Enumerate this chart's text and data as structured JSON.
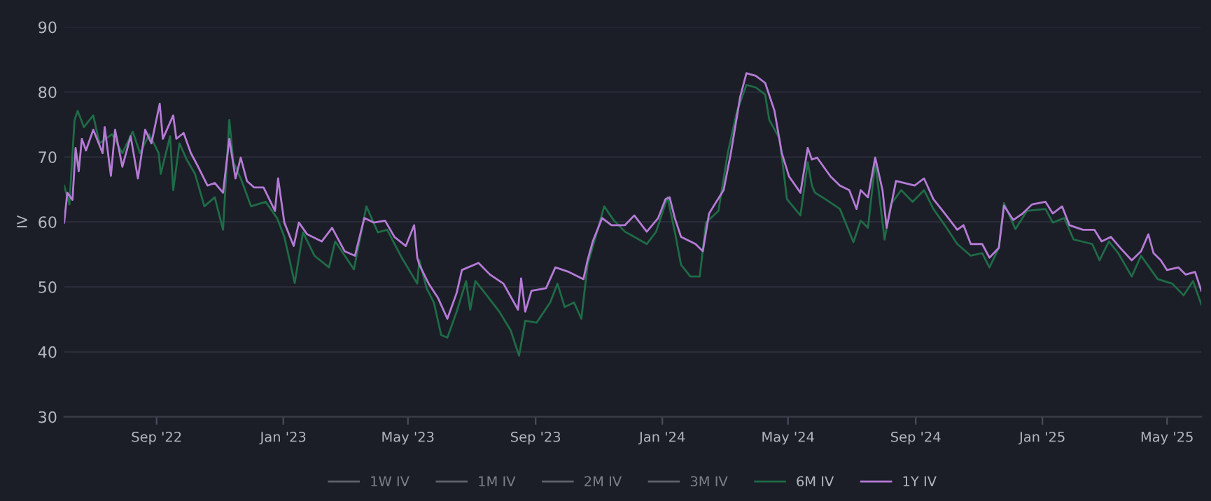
{
  "chart_data": {
    "type": "line",
    "ylabel": "IV",
    "xlim": [
      "2022-06-04",
      "2025-06-03"
    ],
    "xticks": [
      {
        "value": "2022-09-01",
        "label": "Sep '22"
      },
      {
        "value": "2023-01-01",
        "label": "Jan '23"
      },
      {
        "value": "2023-05-01",
        "label": "May '23"
      },
      {
        "value": "2023-09-01",
        "label": "Sep '23"
      },
      {
        "value": "2024-01-01",
        "label": "Jan '24"
      },
      {
        "value": "2024-05-01",
        "label": "May '24"
      },
      {
        "value": "2024-09-01",
        "label": "Sep '24"
      },
      {
        "value": "2025-01-01",
        "label": "Jan '25"
      },
      {
        "value": "2025-05-01",
        "label": "May '25"
      }
    ],
    "ylim": [
      30,
      90
    ],
    "yticks": [
      30,
      40,
      50,
      60,
      70,
      80,
      90
    ],
    "grid": "y",
    "legend": "bottom",
    "line_style": "solid",
    "marker": "none",
    "series": [
      {
        "name": "1W IV",
        "color": "#5f626b"
      },
      {
        "name": "1M IV",
        "color": "#5f626b"
      },
      {
        "name": "2M IV",
        "color": "#5f626b"
      },
      {
        "name": "3M IV",
        "color": "#5f626b"
      },
      {
        "name": "6M IV",
        "color": "#1f6b46",
        "x": [
          "2022-06-04",
          "2022-06-09",
          "2022-06-14",
          "2022-06-17",
          "2022-06-23",
          "2022-07-02",
          "2022-07-08",
          "2022-07-20",
          "2022-07-30",
          "2022-08-09",
          "2022-08-16",
          "2022-08-25",
          "2022-09-03",
          "2022-09-05",
          "2022-09-14",
          "2022-09-17",
          "2022-09-23",
          "2022-09-30",
          "2022-10-08",
          "2022-10-17",
          "2022-10-27",
          "2022-11-04",
          "2022-11-10",
          "2022-11-14",
          "2022-11-22",
          "2022-12-01",
          "2022-12-15",
          "2022-12-26",
          "2023-01-02",
          "2023-01-12",
          "2023-01-20",
          "2023-01-31",
          "2023-02-14",
          "2023-02-20",
          "2023-03-10",
          "2023-03-22",
          "2023-04-02",
          "2023-04-11",
          "2023-04-24",
          "2023-05-10",
          "2023-05-12",
          "2023-05-19",
          "2023-05-26",
          "2023-06-02",
          "2023-06-08",
          "2023-06-17",
          "2023-06-26",
          "2023-06-30",
          "2023-07-05",
          "2023-07-14",
          "2023-07-28",
          "2023-08-08",
          "2023-08-16",
          "2023-08-22",
          "2023-09-02",
          "2023-09-15",
          "2023-09-22",
          "2023-09-29",
          "2023-10-08",
          "2023-10-15",
          "2023-10-21",
          "2023-10-30",
          "2023-11-06",
          "2023-11-15",
          "2023-11-26",
          "2023-12-05",
          "2023-12-17",
          "2023-12-26",
          "2024-01-06",
          "2024-01-13",
          "2024-01-19",
          "2024-01-28",
          "2024-02-06",
          "2024-02-12",
          "2024-02-24",
          "2024-03-04",
          "2024-03-13",
          "2024-03-22",
          "2024-03-31",
          "2024-04-09",
          "2024-04-13",
          "2024-04-23",
          "2024-04-30",
          "2024-05-13",
          "2024-05-20",
          "2024-05-24",
          "2024-05-27",
          "2024-06-07",
          "2024-06-20",
          "2024-07-03",
          "2024-07-10",
          "2024-07-17",
          "2024-07-24",
          "2024-08-02",
          "2024-08-08",
          "2024-08-18",
          "2024-08-29",
          "2024-09-09",
          "2024-09-18",
          "2024-09-29",
          "2024-10-11",
          "2024-10-24",
          "2024-11-04",
          "2024-11-11",
          "2024-11-20",
          "2024-11-25",
          "2024-12-06",
          "2024-12-17",
          "2025-01-04",
          "2025-01-11",
          "2025-01-22",
          "2025-01-31",
          "2025-02-18",
          "2025-02-25",
          "2025-03-06",
          "2025-03-15",
          "2025-03-28",
          "2025-04-06",
          "2025-04-22",
          "2025-05-06",
          "2025-05-17",
          "2025-05-26",
          "2025-06-03"
        ],
        "values": [
          65.6,
          62.7,
          75.7,
          77.1,
          74.6,
          76.4,
          72.1,
          73.5,
          70.6,
          73.9,
          70.6,
          73.5,
          70.6,
          67.4,
          73.2,
          64.9,
          72.1,
          69.6,
          67.4,
          62.4,
          63.8,
          58.8,
          75.7,
          69.2,
          66.3,
          62.4,
          63.1,
          60.6,
          57.7,
          50.6,
          58.4,
          54.8,
          53.0,
          57.0,
          52.7,
          62.4,
          58.4,
          58.8,
          54.8,
          50.5,
          54.1,
          49.8,
          47.6,
          42.6,
          42.2,
          46.2,
          50.9,
          46.5,
          50.9,
          49.1,
          46.2,
          43.3,
          39.4,
          44.8,
          44.5,
          47.6,
          50.5,
          46.9,
          47.6,
          45.1,
          53.4,
          58.4,
          62.4,
          60.3,
          58.5,
          57.7,
          56.6,
          58.5,
          63.8,
          58.5,
          53.4,
          51.6,
          51.6,
          59.9,
          61.7,
          70.6,
          77.1,
          81.1,
          80.7,
          79.6,
          75.7,
          72.8,
          63.5,
          61.0,
          69.2,
          65.6,
          64.5,
          63.4,
          62.0,
          56.9,
          60.2,
          59.1,
          69.2,
          57.3,
          62.7,
          64.9,
          63.1,
          64.9,
          62.0,
          59.5,
          56.6,
          54.8,
          55.2,
          53.0,
          56.0,
          62.9,
          58.9,
          61.7,
          62.0,
          59.9,
          60.6,
          57.3,
          56.6,
          54.1,
          57.0,
          55.2,
          51.6,
          54.8,
          51.2,
          50.5,
          48.7,
          50.9,
          47.3
        ]
      },
      {
        "name": "1Y IV",
        "color": "#b57bd6",
        "x": [
          "2022-06-04",
          "2022-06-07",
          "2022-06-12",
          "2022-06-15",
          "2022-06-18",
          "2022-06-21",
          "2022-06-25",
          "2022-07-02",
          "2022-07-11",
          "2022-07-13",
          "2022-07-19",
          "2022-07-23",
          "2022-07-30",
          "2022-08-07",
          "2022-08-14",
          "2022-08-21",
          "2022-08-27",
          "2022-09-04",
          "2022-09-07",
          "2022-09-17",
          "2022-09-20",
          "2022-09-27",
          "2022-10-04",
          "2022-10-11",
          "2022-10-20",
          "2022-10-27",
          "2022-11-04",
          "2022-11-10",
          "2022-11-16",
          "2022-11-21",
          "2022-11-27",
          "2022-12-04",
          "2022-12-13",
          "2022-12-24",
          "2022-12-27",
          "2023-01-02",
          "2023-01-11",
          "2023-01-16",
          "2023-01-24",
          "2023-02-07",
          "2023-02-17",
          "2023-03-01",
          "2023-03-11",
          "2023-03-20",
          "2023-03-29",
          "2023-04-09",
          "2023-04-18",
          "2023-04-29",
          "2023-05-07",
          "2023-05-10",
          "2023-05-12",
          "2023-05-21",
          "2023-05-30",
          "2023-06-08",
          "2023-06-17",
          "2023-06-22",
          "2023-07-08",
          "2023-07-19",
          "2023-08-01",
          "2023-08-15",
          "2023-08-18",
          "2023-08-22",
          "2023-08-28",
          "2023-09-11",
          "2023-09-20",
          "2023-10-03",
          "2023-10-17",
          "2023-10-21",
          "2023-10-26",
          "2023-11-04",
          "2023-11-13",
          "2023-11-26",
          "2023-12-05",
          "2023-12-17",
          "2023-12-28",
          "2024-01-04",
          "2024-01-08",
          "2024-01-13",
          "2024-01-19",
          "2024-02-02",
          "2024-02-09",
          "2024-02-15",
          "2024-02-29",
          "2024-03-07",
          "2024-03-16",
          "2024-03-22",
          "2024-03-31",
          "2024-04-09",
          "2024-04-18",
          "2024-04-25",
          "2024-05-02",
          "2024-05-13",
          "2024-05-20",
          "2024-05-24",
          "2024-05-29",
          "2024-06-11",
          "2024-06-20",
          "2024-06-29",
          "2024-07-06",
          "2024-07-10",
          "2024-07-17",
          "2024-07-24",
          "2024-07-31",
          "2024-08-04",
          "2024-08-13",
          "2024-08-31",
          "2024-09-09",
          "2024-09-18",
          "2024-09-29",
          "2024-10-11",
          "2024-10-17",
          "2024-10-24",
          "2024-11-04",
          "2024-11-11",
          "2024-11-20",
          "2024-11-25",
          "2024-12-04",
          "2024-12-13",
          "2024-12-22",
          "2025-01-04",
          "2025-01-11",
          "2025-01-20",
          "2025-01-27",
          "2025-02-09",
          "2025-02-20",
          "2025-02-27",
          "2025-03-08",
          "2025-03-17",
          "2025-03-28",
          "2025-04-06",
          "2025-04-13",
          "2025-04-18",
          "2025-04-25",
          "2025-05-01",
          "2025-05-12",
          "2025-05-19",
          "2025-05-28",
          "2025-06-03"
        ],
        "values": [
          59.9,
          64.5,
          63.4,
          71.4,
          67.8,
          72.8,
          71.0,
          74.2,
          70.6,
          74.6,
          67.1,
          74.2,
          68.5,
          73.2,
          66.7,
          74.2,
          72.1,
          78.2,
          72.8,
          76.4,
          72.8,
          73.7,
          70.6,
          68.5,
          65.6,
          66.0,
          64.5,
          72.8,
          66.7,
          69.9,
          66.3,
          65.3,
          65.3,
          61.7,
          66.7,
          59.9,
          56.3,
          59.9,
          58.1,
          57.0,
          59.1,
          55.5,
          54.8,
          60.6,
          59.9,
          60.2,
          57.7,
          56.3,
          59.5,
          54.5,
          53.4,
          50.5,
          48.3,
          45.1,
          49.1,
          52.6,
          53.7,
          51.9,
          50.5,
          46.5,
          51.3,
          46.2,
          49.4,
          49.8,
          53.0,
          52.3,
          51.2,
          54.1,
          57.0,
          60.6,
          59.5,
          59.5,
          61.0,
          58.5,
          60.6,
          63.5,
          63.8,
          60.6,
          57.7,
          56.6,
          55.5,
          61.3,
          64.9,
          70.6,
          79.3,
          82.9,
          82.5,
          81.4,
          77.1,
          70.6,
          67.0,
          64.5,
          71.4,
          69.6,
          69.9,
          67.0,
          65.6,
          64.9,
          62.0,
          64.9,
          63.8,
          69.9,
          64.9,
          59.1,
          66.3,
          65.6,
          66.7,
          63.5,
          61.3,
          58.8,
          59.5,
          56.6,
          56.6,
          54.5,
          56.0,
          62.5,
          60.3,
          61.3,
          62.7,
          63.1,
          61.3,
          62.4,
          59.5,
          58.8,
          58.8,
          57.0,
          57.7,
          56.0,
          54.1,
          55.5,
          58.1,
          55.2,
          54.1,
          52.6,
          53.0,
          51.9,
          52.3,
          49.4
        ]
      }
    ]
  }
}
